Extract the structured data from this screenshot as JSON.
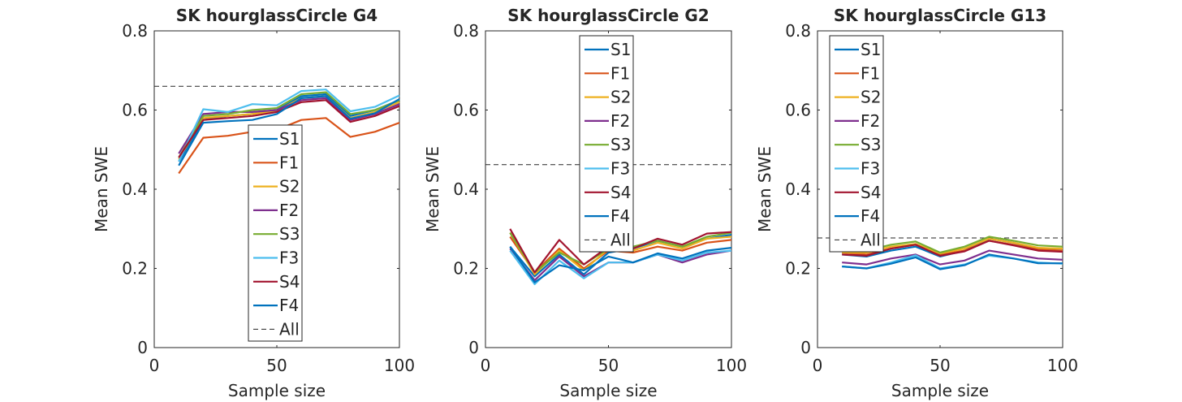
{
  "chart_data": [
    {
      "type": "line",
      "title": "SK hourglassCircle G4",
      "xlabel": "Sample size",
      "ylabel": "Mean SWE",
      "xlim": [
        0,
        100
      ],
      "ylim": [
        0,
        0.8
      ],
      "xticks": [
        0,
        50,
        100
      ],
      "yticks": [
        0,
        0.2,
        0.4,
        0.6,
        0.8
      ],
      "grid": false,
      "legend_position": "center-bottom",
      "x": [
        10,
        20,
        30,
        40,
        50,
        60,
        70,
        80,
        90,
        100
      ],
      "series": [
        {
          "name": "S1",
          "color": "#0072BD",
          "values": [
            0.47,
            0.575,
            0.585,
            0.59,
            0.6,
            0.635,
            0.64,
            0.585,
            0.6,
            0.625
          ]
        },
        {
          "name": "F1",
          "color": "#D95319",
          "values": [
            0.44,
            0.53,
            0.535,
            0.545,
            0.55,
            0.575,
            0.58,
            0.532,
            0.545,
            0.568
          ]
        },
        {
          "name": "S2",
          "color": "#EDB120",
          "values": [
            0.475,
            0.58,
            0.585,
            0.59,
            0.598,
            0.63,
            0.635,
            0.58,
            0.595,
            0.62
          ]
        },
        {
          "name": "F2",
          "color": "#7E2F8E",
          "values": [
            0.49,
            0.59,
            0.595,
            0.595,
            0.6,
            0.625,
            0.63,
            0.575,
            0.59,
            0.615
          ]
        },
        {
          "name": "S3",
          "color": "#77AC30",
          "values": [
            0.48,
            0.585,
            0.59,
            0.6,
            0.605,
            0.64,
            0.645,
            0.59,
            0.6,
            0.625
          ]
        },
        {
          "name": "F3",
          "color": "#4DBEEE",
          "values": [
            0.47,
            0.602,
            0.595,
            0.615,
            0.612,
            0.648,
            0.652,
            0.597,
            0.608,
            0.637
          ]
        },
        {
          "name": "S4",
          "color": "#A2142F",
          "values": [
            0.48,
            0.575,
            0.58,
            0.585,
            0.595,
            0.62,
            0.625,
            0.57,
            0.585,
            0.61
          ]
        },
        {
          "name": "F4",
          "color": "#0072BD",
          "values": [
            0.46,
            0.568,
            0.572,
            0.575,
            0.59,
            0.63,
            0.635,
            0.578,
            0.592,
            0.628
          ]
        }
      ],
      "reference": {
        "name": "All",
        "value": 0.66,
        "color": "#262626",
        "style": "dashed"
      }
    },
    {
      "type": "line",
      "title": "SK hourglassCircle G2",
      "xlabel": "Sample size",
      "ylabel": "Mean SWE",
      "xlim": [
        0,
        100
      ],
      "ylim": [
        0,
        0.8
      ],
      "xticks": [
        0,
        50,
        100
      ],
      "yticks": [
        0,
        0.2,
        0.4,
        0.6,
        0.8
      ],
      "grid": false,
      "legend_position": "top-center",
      "x": [
        10,
        20,
        30,
        40,
        50,
        60,
        70,
        80,
        90,
        100
      ],
      "series": [
        {
          "name": "S1",
          "color": "#0072BD",
          "values": [
            0.255,
            0.18,
            0.235,
            0.185,
            0.24,
            0.25,
            0.27,
            0.255,
            0.275,
            0.285
          ]
        },
        {
          "name": "F1",
          "color": "#D95319",
          "values": [
            0.28,
            0.19,
            0.25,
            0.2,
            0.245,
            0.24,
            0.255,
            0.245,
            0.265,
            0.272
          ]
        },
        {
          "name": "S2",
          "color": "#EDB120",
          "values": [
            0.29,
            0.185,
            0.245,
            0.195,
            0.25,
            0.245,
            0.265,
            0.25,
            0.275,
            0.28
          ]
        },
        {
          "name": "F2",
          "color": "#7E2F8E",
          "values": [
            0.25,
            0.17,
            0.23,
            0.18,
            0.215,
            0.215,
            0.235,
            0.215,
            0.235,
            0.245
          ]
        },
        {
          "name": "S3",
          "color": "#77AC30",
          "values": [
            0.29,
            0.19,
            0.24,
            0.21,
            0.25,
            0.255,
            0.27,
            0.255,
            0.28,
            0.29
          ]
        },
        {
          "name": "F3",
          "color": "#4DBEEE",
          "values": [
            0.245,
            0.16,
            0.22,
            0.175,
            0.215,
            0.215,
            0.235,
            0.22,
            0.24,
            0.245
          ]
        },
        {
          "name": "S4",
          "color": "#A2142F",
          "values": [
            0.3,
            0.19,
            0.272,
            0.21,
            0.255,
            0.25,
            0.275,
            0.26,
            0.288,
            0.292
          ]
        },
        {
          "name": "F4",
          "color": "#0072BD",
          "values": [
            0.255,
            0.165,
            0.208,
            0.195,
            0.23,
            0.215,
            0.238,
            0.225,
            0.245,
            0.252
          ]
        }
      ],
      "reference": {
        "name": "All",
        "value": 0.462,
        "color": "#262626",
        "style": "dashed"
      }
    },
    {
      "type": "line",
      "title": "SK hourglassCircle G13",
      "xlabel": "Sample size",
      "ylabel": "Mean SWE",
      "xlim": [
        0,
        100
      ],
      "ylim": [
        0,
        0.8
      ],
      "xticks": [
        0,
        50,
        100
      ],
      "yticks": [
        0,
        0.2,
        0.4,
        0.6,
        0.8
      ],
      "grid": false,
      "legend_position": "top-left",
      "x": [
        10,
        20,
        30,
        40,
        50,
        60,
        70,
        80,
        90,
        100
      ],
      "series": [
        {
          "name": "S1",
          "color": "#0072BD",
          "values": [
            0.235,
            0.23,
            0.245,
            0.255,
            0.23,
            0.245,
            0.275,
            0.265,
            0.25,
            0.25
          ]
        },
        {
          "name": "F1",
          "color": "#D95319",
          "values": [
            0.24,
            0.235,
            0.25,
            0.26,
            0.235,
            0.245,
            0.27,
            0.26,
            0.248,
            0.245
          ]
        },
        {
          "name": "S2",
          "color": "#EDB120",
          "values": [
            0.24,
            0.24,
            0.255,
            0.262,
            0.238,
            0.25,
            0.275,
            0.265,
            0.252,
            0.25
          ]
        },
        {
          "name": "F2",
          "color": "#7E2F8E",
          "values": [
            0.215,
            0.21,
            0.225,
            0.235,
            0.21,
            0.22,
            0.245,
            0.235,
            0.225,
            0.222
          ]
        },
        {
          "name": "S3",
          "color": "#77AC30",
          "values": [
            0.245,
            0.245,
            0.26,
            0.268,
            0.24,
            0.255,
            0.28,
            0.27,
            0.258,
            0.255
          ]
        },
        {
          "name": "F3",
          "color": "#4DBEEE",
          "values": [
            0.205,
            0.2,
            0.215,
            0.233,
            0.2,
            0.21,
            0.232,
            0.225,
            0.215,
            0.212
          ]
        },
        {
          "name": "S4",
          "color": "#A2142F",
          "values": [
            0.235,
            0.232,
            0.25,
            0.26,
            0.232,
            0.243,
            0.27,
            0.258,
            0.245,
            0.242
          ]
        },
        {
          "name": "F4",
          "color": "#0072BD",
          "values": [
            0.205,
            0.2,
            0.212,
            0.228,
            0.198,
            0.208,
            0.235,
            0.225,
            0.213,
            0.213
          ]
        }
      ],
      "reference": {
        "name": "All",
        "value": 0.277,
        "color": "#262626",
        "style": "dashed"
      }
    }
  ]
}
